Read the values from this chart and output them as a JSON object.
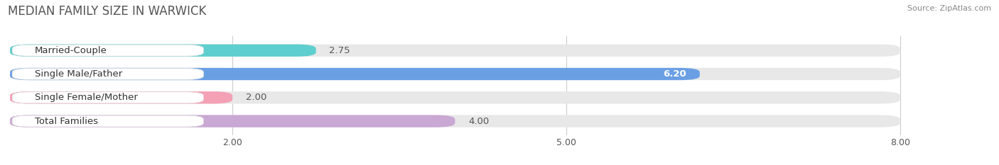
{
  "title": "MEDIAN FAMILY SIZE IN WARWICK",
  "source": "Source: ZipAtlas.com",
  "categories": [
    "Married-Couple",
    "Single Male/Father",
    "Single Female/Mother",
    "Total Families"
  ],
  "values": [
    2.75,
    6.2,
    2.0,
    4.0
  ],
  "bar_colors": [
    "#5ecece",
    "#6b9fe4",
    "#f4a0b5",
    "#c9a8d4"
  ],
  "background_color": "#ffffff",
  "bar_background_color": "#e8e8e8",
  "xlim": [
    0,
    8.8
  ],
  "x_max_display": 8.0,
  "xticks": [
    2.0,
    5.0,
    8.0
  ],
  "label_fontsize": 9.5,
  "value_fontsize": 9.5,
  "title_fontsize": 12
}
